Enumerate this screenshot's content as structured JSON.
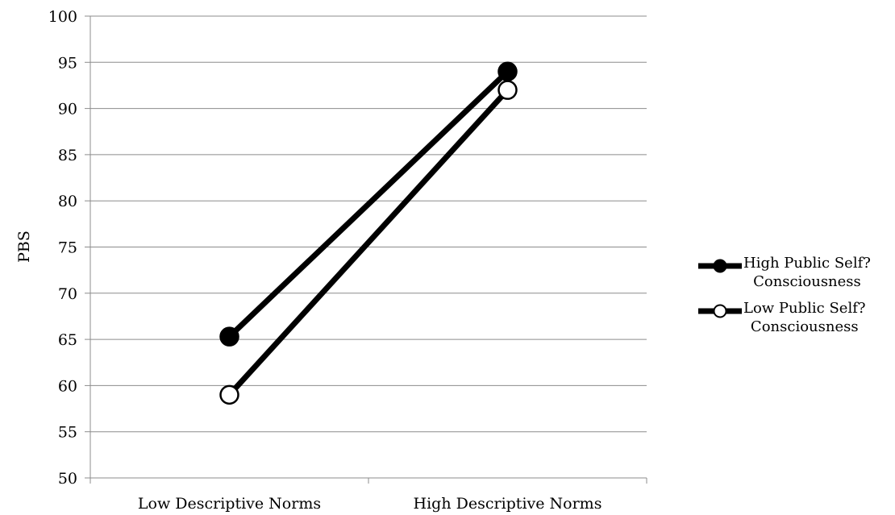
{
  "chart_data": {
    "type": "line",
    "categories": [
      "Low Descriptive Norms",
      "High Descriptive Norms"
    ],
    "series": [
      {
        "name_lines": [
          "High Public Self?",
          "Consciousness"
        ],
        "values": [
          65.3,
          94.0
        ],
        "marker": "filled",
        "color": "#000000"
      },
      {
        "name_lines": [
          "Low Public Self?",
          "Consciousness"
        ],
        "values": [
          59.0,
          92.0
        ],
        "marker": "hollow",
        "color": "#000000"
      }
    ],
    "ylabel": "PBS",
    "ylim": [
      50,
      100
    ],
    "yticks": [
      50,
      55,
      60,
      65,
      70,
      75,
      80,
      85,
      90,
      95,
      100
    ],
    "grid": true,
    "legend_position": "right"
  }
}
